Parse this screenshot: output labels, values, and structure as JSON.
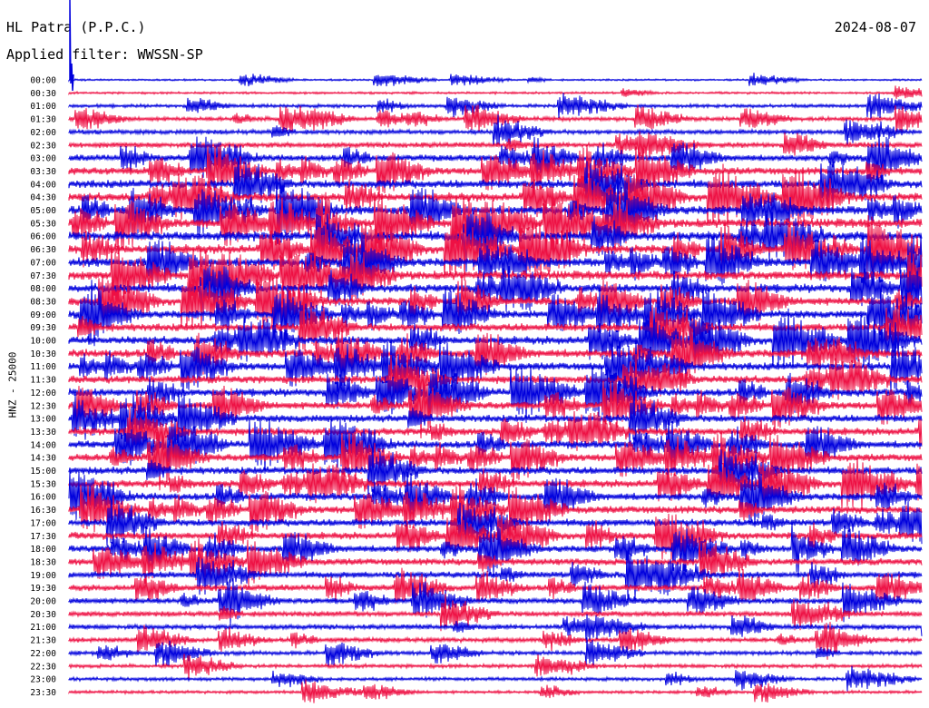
{
  "header": {
    "station": "HL Patra (P.P.C.)",
    "date": "2024-08-07",
    "filter": "Applied filter: WWSSN-SP"
  },
  "chart_data": {
    "type": "line",
    "title": "HL Patra (P.P.C.)",
    "subtitle": "Applied filter: WWSSN-SP",
    "ylabel": "HNZ - 25000",
    "xlabel": "",
    "grid": false,
    "time_labels": [
      "00:00",
      "00:30",
      "01:00",
      "01:30",
      "02:00",
      "02:30",
      "03:00",
      "03:30",
      "04:00",
      "04:30",
      "05:00",
      "05:30",
      "06:00",
      "06:30",
      "07:00",
      "07:30",
      "08:00",
      "08:30",
      "09:00",
      "09:30",
      "10:00",
      "10:30",
      "11:00",
      "11:30",
      "12:00",
      "12:30",
      "13:00",
      "13:30",
      "14:00",
      "14:30",
      "15:00",
      "15:30",
      "16:00",
      "16:30",
      "17:00",
      "17:30",
      "18:00",
      "18:30",
      "19:00",
      "19:30",
      "20:00",
      "20:30",
      "21:00",
      "21:30",
      "22:00",
      "22:30",
      "23:00",
      "23:30"
    ],
    "trace_colors": [
      "#0000dd",
      "#ee1144"
    ],
    "trace_noise": [
      0.25,
      0.3,
      0.45,
      0.55,
      0.6,
      0.7,
      0.85,
      1.0,
      1.1,
      1.15,
      1.2,
      1.2,
      1.25,
      1.2,
      1.2,
      1.2,
      1.15,
      1.1,
      1.05,
      1.05,
      1.1,
      1.1,
      1.05,
      1.05,
      1.05,
      1.0,
      1.0,
      1.0,
      1.0,
      1.0,
      1.0,
      1.0,
      1.0,
      1.0,
      0.95,
      0.95,
      0.9,
      0.9,
      0.85,
      0.8,
      0.75,
      0.7,
      0.65,
      0.6,
      0.55,
      0.5,
      0.45,
      0.4
    ]
  }
}
